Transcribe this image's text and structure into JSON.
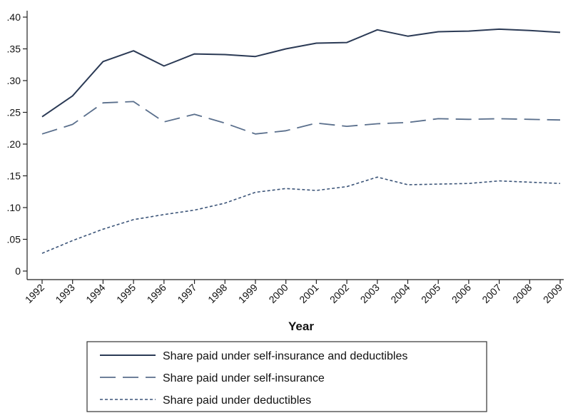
{
  "chart_data": {
    "type": "line",
    "xlabel": "Year",
    "ylabel": "",
    "ylim": [
      0,
      0.4
    ],
    "yticks": [
      {
        "value": 0,
        "label": "0"
      },
      {
        "value": 0.05,
        "label": ".05"
      },
      {
        "value": 0.1,
        "label": ".10"
      },
      {
        "value": 0.15,
        "label": ".15"
      },
      {
        "value": 0.2,
        "label": ".20"
      },
      {
        "value": 0.25,
        "label": ".25"
      },
      {
        "value": 0.3,
        "label": ".30"
      },
      {
        "value": 0.35,
        "label": ".35"
      },
      {
        "value": 0.4,
        "label": ".40"
      }
    ],
    "categories": [
      "1992",
      "1993",
      "1994",
      "1995",
      "1996",
      "1997",
      "1998",
      "1999",
      "2000",
      "2001",
      "2002",
      "2003",
      "2004",
      "2005",
      "2006",
      "2007",
      "2008",
      "2009"
    ],
    "grid": false,
    "legend_position": "bottom",
    "series": [
      {
        "name": "Share paid under self-insurance and deductibles",
        "style": "solid",
        "color": "#2b3a55",
        "values": [
          0.243,
          0.276,
          0.33,
          0.347,
          0.323,
          0.342,
          0.341,
          0.338,
          0.35,
          0.359,
          0.36,
          0.38,
          0.37,
          0.377,
          0.378,
          0.381,
          0.379,
          0.376
        ]
      },
      {
        "name": "Share paid under self-insurance",
        "style": "long-dash",
        "color": "#5a6f8c",
        "values": [
          0.216,
          0.231,
          0.265,
          0.267,
          0.235,
          0.247,
          0.233,
          0.216,
          0.221,
          0.233,
          0.228,
          0.232,
          0.234,
          0.24,
          0.239,
          0.24,
          0.239,
          0.238
        ]
      },
      {
        "name": "Share paid under deductibles",
        "style": "dotted",
        "color": "#3b5478",
        "values": [
          0.028,
          0.048,
          0.066,
          0.081,
          0.089,
          0.096,
          0.107,
          0.124,
          0.13,
          0.127,
          0.133,
          0.148,
          0.136,
          0.137,
          0.138,
          0.142,
          0.14,
          0.138
        ]
      }
    ]
  }
}
